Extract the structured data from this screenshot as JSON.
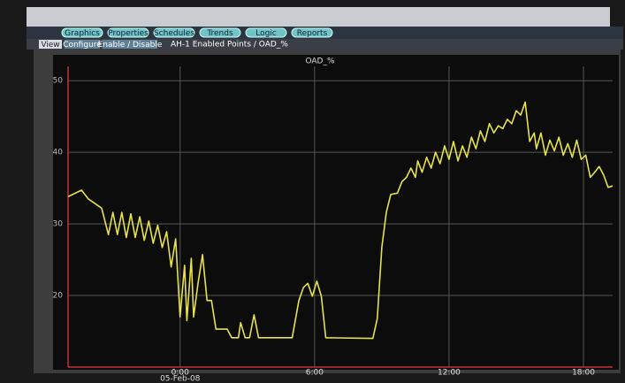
{
  "toolbar": {
    "buttons": [
      "Graphics",
      "Properties",
      "Schedules",
      "Trends",
      "Logic",
      "Reports"
    ]
  },
  "tabs": [
    "View",
    "Configure",
    "Enable / Disable"
  ],
  "breadcrumb": "AH-1  Enabled Points / OAD_%",
  "chart_data": {
    "type": "line",
    "title": "OAD_%",
    "x_date_label": "05-Feb-08",
    "xlim": [
      -5,
      19.3
    ],
    "xticks": [
      {
        "value": 0,
        "label": "0:00"
      },
      {
        "value": 6,
        "label": "6:00"
      },
      {
        "value": 12,
        "label": "12:00"
      },
      {
        "value": 18,
        "label": "18:00"
      }
    ],
    "ylim": [
      10,
      52
    ],
    "yticks": [
      20,
      30,
      40,
      50
    ],
    "grid": true,
    "series": [
      {
        "color": "#e6e24a",
        "x": [
          -5.0,
          -4.4,
          -4.1,
          -3.5,
          -3.2,
          -3.0,
          -2.8,
          -2.6,
          -2.4,
          -2.2,
          -2.0,
          -1.8,
          -1.6,
          -1.4,
          -1.2,
          -1.0,
          -0.8,
          -0.6,
          -0.4,
          -0.2,
          0.0,
          0.2,
          0.3,
          0.5,
          0.6,
          0.8,
          1.0,
          1.2,
          1.4,
          1.6,
          2.1,
          2.3,
          2.6,
          2.7,
          2.9,
          3.1,
          3.3,
          3.5,
          5.0,
          5.3,
          5.5,
          5.7,
          5.9,
          6.1,
          6.3,
          6.5,
          8.6,
          8.8,
          9.0,
          9.2,
          9.4,
          9.7,
          9.9,
          10.1,
          10.3,
          10.5,
          10.6,
          10.8,
          11.0,
          11.2,
          11.4,
          11.6,
          11.8,
          12.0,
          12.2,
          12.4,
          12.6,
          12.8,
          13.0,
          13.2,
          13.4,
          13.6,
          13.8,
          14.0,
          14.2,
          14.4,
          14.6,
          14.8,
          15.0,
          15.2,
          15.4,
          15.6,
          15.8,
          15.9,
          16.1,
          16.3,
          16.5,
          16.7,
          16.9,
          17.1,
          17.3,
          17.5,
          17.7,
          17.9,
          18.1,
          18.3,
          18.5,
          18.7,
          18.9,
          19.1,
          19.3
        ],
        "values": [
          33.8,
          34.7,
          33.5,
          32.2,
          28.5,
          31.6,
          28.5,
          31.6,
          28.1,
          31.4,
          28.1,
          31.0,
          27.7,
          30.4,
          27.3,
          29.8,
          26.7,
          28.9,
          24.0,
          27.9,
          17.0,
          24.2,
          16.5,
          25.2,
          17.0,
          21.7,
          25.7,
          19.3,
          19.3,
          15.3,
          15.3,
          14.1,
          14.1,
          16.2,
          14.1,
          14.1,
          17.3,
          14.1,
          14.1,
          19.3,
          21.1,
          21.7,
          19.9,
          22.0,
          19.9,
          14.1,
          14.0,
          16.8,
          26.7,
          31.6,
          34.1,
          34.3,
          35.9,
          36.5,
          37.8,
          36.5,
          38.8,
          37.2,
          39.3,
          37.8,
          40.0,
          38.4,
          40.9,
          39.0,
          41.5,
          38.8,
          40.9,
          39.3,
          42.1,
          40.5,
          43.0,
          41.5,
          44.0,
          42.7,
          43.7,
          43.3,
          44.6,
          44.0,
          45.8,
          45.2,
          47.0,
          41.5,
          42.7,
          40.5,
          42.7,
          39.6,
          41.7,
          40.2,
          42.1,
          39.6,
          41.2,
          39.3,
          41.7,
          39.0,
          39.6,
          36.5,
          37.2,
          38.0,
          36.8,
          35.1,
          35.3
        ]
      }
    ]
  }
}
